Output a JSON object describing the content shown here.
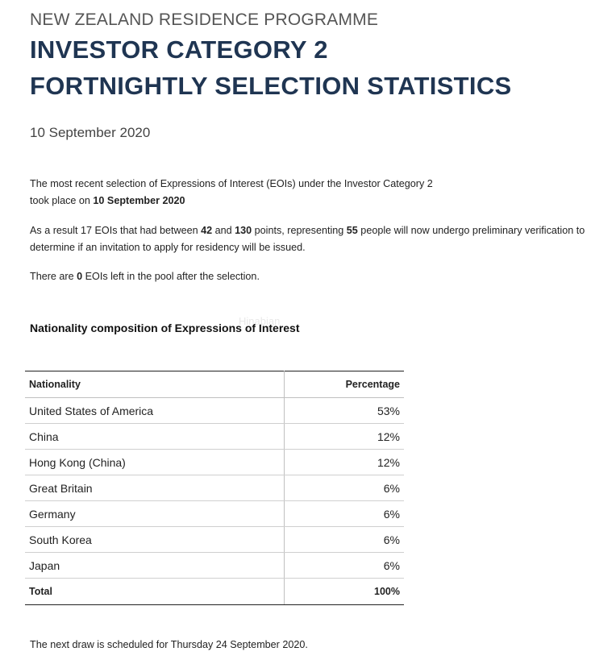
{
  "header": {
    "kicker": "NEW ZEALAND RESIDENCE PROGRAMME",
    "title_line1": "INVESTOR CATEGORY 2",
    "title_line2": "FORTNIGHTLY SELECTION STATISTICS",
    "date": "10 September 2020"
  },
  "intro": {
    "p1_text": "The most recent selection of Expressions of Interest (EOIs) under the Investor Category 2",
    "p1_line2_prefix": "took place on ",
    "p1_line2_bold": "10 September 2020",
    "p2_a": "As a result 17 EOIs that had between ",
    "p2_b": "42",
    "p2_c": " and ",
    "p2_d": "130",
    "p2_e": " points, representing ",
    "p2_f": "55",
    "p2_g": " people will now undergo preliminary verification to determine if an invitation to apply for residency will be issued.",
    "p3_a": "There are ",
    "p3_b": "0",
    "p3_c": " EOIs left in the pool after the selection."
  },
  "section": {
    "title": "Nationality composition of Expressions of Interest",
    "watermark": "Hinabian"
  },
  "table": {
    "headers": {
      "nationality": "Nationality",
      "percentage": "Percentage"
    },
    "rows": [
      {
        "nationality": "United States of America",
        "percentage": "53%"
      },
      {
        "nationality": "China",
        "percentage": "12%"
      },
      {
        "nationality": "Hong Kong (China)",
        "percentage": "12%"
      },
      {
        "nationality": "Great Britain",
        "percentage": "6%"
      },
      {
        "nationality": "Germany",
        "percentage": "6%"
      },
      {
        "nationality": "South Korea",
        "percentage": "6%"
      },
      {
        "nationality": "Japan",
        "percentage": "6%"
      }
    ],
    "total": {
      "label": "Total",
      "value": "100%"
    }
  },
  "footer": {
    "note": "The next draw is scheduled for Thursday 24 September 2020."
  }
}
